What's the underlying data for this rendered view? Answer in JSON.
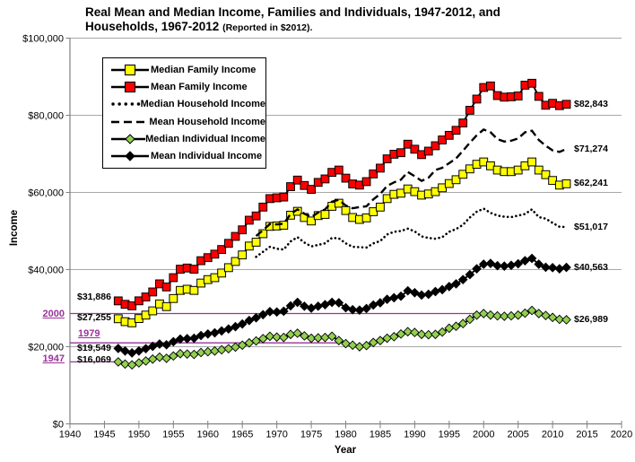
{
  "title": {
    "line1": "Real Mean and Median Income, Families and Individuals, 1947-2012, and",
    "line2": "Households, 1967-2012 ",
    "line2_note": "(Reported in $2012)."
  },
  "axes": {
    "x": {
      "label": "Year",
      "min": 1940,
      "max": 2020,
      "ticks": [
        1940,
        1945,
        1950,
        1955,
        1960,
        1965,
        1970,
        1975,
        1980,
        1985,
        1990,
        1995,
        2000,
        2005,
        2010,
        2015,
        2020
      ],
      "tick_labels": [
        "1940",
        "1945",
        "1950",
        "1955",
        "1960",
        "1965",
        "1970",
        "1975",
        "1980",
        "1985",
        "1990",
        "1995",
        "2000",
        "2005",
        "2010",
        "2015",
        "2020"
      ]
    },
    "y": {
      "label": "Income",
      "min": 0,
      "max": 100000,
      "ticks": [
        0,
        20000,
        40000,
        60000,
        80000,
        100000
      ],
      "tick_labels": [
        "$0",
        "$20,000",
        "$40,000",
        "$60,000",
        "$80,000",
        "$100,000"
      ]
    }
  },
  "legend": {
    "entries": [
      {
        "label": "Median Family Income",
        "series": "median_family"
      },
      {
        "label": "Mean Family Income",
        "series": "mean_family"
      },
      {
        "label": "Median Household Income",
        "series": "median_household"
      },
      {
        "label": "Mean Household Income",
        "series": "mean_household"
      },
      {
        "label": "Median Individual Income",
        "series": "median_individual"
      },
      {
        "label": "Mean Individual Income",
        "series": "mean_individual"
      }
    ]
  },
  "annotations": {
    "start_labels": [
      {
        "text": "$31,886",
        "series": "mean_family"
      },
      {
        "text": "$27,255",
        "series": "median_family"
      },
      {
        "text": "$19,549",
        "series": "mean_individual"
      },
      {
        "text": "$16,069",
        "series": "median_individual"
      }
    ],
    "end_labels": [
      {
        "text": "$82,843",
        "series": "mean_family"
      },
      {
        "text": "$71,274",
        "series": "mean_household"
      },
      {
        "text": "$62,241",
        "series": "median_family"
      },
      {
        "text": "$51,017",
        "series": "median_household"
      },
      {
        "text": "$40,563",
        "series": "mean_individual"
      },
      {
        "text": "$26,989",
        "series": "median_individual"
      }
    ],
    "reference_lines": [
      {
        "label": "2000",
        "value": 28600,
        "end_year": 2000,
        "label_position": "outside-axis"
      },
      {
        "label": "1979",
        "value": 21000,
        "end_year": 1979,
        "label_position": "inside-plot"
      },
      {
        "label": "1947",
        "value": 16069,
        "end_year": 1947,
        "label_position": "outside-axis"
      }
    ]
  },
  "colors": {
    "gridline": "#A8A8A8",
    "axis": "#808080",
    "reference": "#993399",
    "text": "#000000"
  },
  "chart_data": {
    "type": "line",
    "title": "Real Mean and Median Income, Families and Individuals, 1947-2012, and Households, 1967-2012 (Reported in $2012).",
    "xlabel": "Year",
    "ylabel": "Income",
    "xlim": [
      1940,
      2020
    ],
    "ylim": [
      0,
      100000
    ],
    "grid": "horizontal",
    "legend_position": "upper-left-inside",
    "series": [
      {
        "id": "median_family",
        "name": "Median Family Income",
        "start_year": 1947,
        "line": "solid",
        "line_color": "#000000",
        "marker": "square",
        "marker_color": "#FFFF00",
        "values": [
          27255,
          26500,
          26200,
          27300,
          28200,
          29300,
          31100,
          30400,
          32500,
          34600,
          34900,
          34600,
          36500,
          37400,
          37900,
          39100,
          40500,
          42100,
          43800,
          46100,
          47100,
          49300,
          51200,
          51300,
          51500,
          54100,
          55100,
          53500,
          52600,
          54000,
          54300,
          56400,
          57200,
          55300,
          53500,
          53000,
          53400,
          55000,
          56200,
          58400,
          59500,
          59800,
          60900,
          60200,
          59300,
          59600,
          60200,
          61200,
          62300,
          63300,
          64700,
          66100,
          67300,
          67900,
          66900,
          65800,
          65400,
          65400,
          65800,
          66900,
          67900,
          65800,
          64600,
          63100,
          61900,
          62241
        ]
      },
      {
        "id": "mean_family",
        "name": "Mean Family Income",
        "start_year": 1947,
        "line": "solid",
        "line_color": "#000000",
        "marker": "square",
        "marker_color": "#FF0000",
        "values": [
          31886,
          31000,
          30600,
          31900,
          32900,
          34200,
          36300,
          35500,
          37900,
          40100,
          40400,
          40100,
          42300,
          43100,
          44000,
          45200,
          46800,
          48600,
          50300,
          52800,
          53900,
          56200,
          58400,
          58600,
          58800,
          61500,
          63200,
          61800,
          60800,
          62600,
          63500,
          65200,
          65800,
          63700,
          62200,
          61900,
          62800,
          64800,
          66300,
          68700,
          69900,
          70300,
          72500,
          71200,
          69800,
          70700,
          72100,
          73600,
          74800,
          76100,
          78000,
          81300,
          84200,
          87200,
          87600,
          85100,
          84700,
          84800,
          85000,
          87800,
          88300,
          84900,
          82600,
          83100,
          82500,
          82843
        ]
      },
      {
        "id": "median_household",
        "name": "Median Household Income",
        "start_year": 1967,
        "line": "dotted",
        "line_color": "#000000",
        "marker": "none",
        "marker_color": "",
        "values": [
          43300,
          44600,
          45900,
          45400,
          45200,
          47300,
          48400,
          47000,
          46000,
          46400,
          46800,
          48200,
          48100,
          46800,
          45900,
          45800,
          45700,
          46800,
          47400,
          49100,
          49800,
          50000,
          50600,
          49900,
          48600,
          48200,
          48000,
          48400,
          49800,
          50500,
          51600,
          53500,
          55000,
          55800,
          54700,
          54000,
          53700,
          53600,
          54000,
          54400,
          55600,
          53600,
          53200,
          52100,
          51100,
          51017
        ]
      },
      {
        "id": "mean_household",
        "name": "Mean Household Income",
        "start_year": 1967,
        "line": "dashed",
        "line_color": "#000000",
        "marker": "none",
        "marker_color": "",
        "values": [
          48700,
          50200,
          51800,
          51700,
          51900,
          54400,
          55600,
          54500,
          53600,
          54800,
          55600,
          57600,
          58100,
          56600,
          55900,
          56200,
          56400,
          58200,
          59600,
          61700,
          62600,
          63300,
          65300,
          64200,
          63000,
          63800,
          65800,
          66400,
          67600,
          68800,
          70800,
          72900,
          74800,
          76300,
          75600,
          73800,
          73200,
          73400,
          74000,
          75600,
          76000,
          73600,
          72100,
          70900,
          70500,
          71274
        ]
      },
      {
        "id": "median_individual",
        "name": "Median Individual Income",
        "start_year": 1947,
        "line": "solid",
        "line_color": "#000000",
        "marker": "diamond",
        "marker_color": "#92D050",
        "values": [
          16069,
          15500,
          15300,
          15800,
          16300,
          16800,
          17300,
          17000,
          17600,
          18200,
          18100,
          18000,
          18500,
          18700,
          18900,
          19200,
          19500,
          19900,
          20400,
          21000,
          21500,
          22100,
          22700,
          22500,
          22400,
          23200,
          23500,
          22800,
          22200,
          22300,
          22400,
          22700,
          21600,
          20800,
          20400,
          20000,
          20300,
          21100,
          21600,
          22200,
          22600,
          23300,
          23900,
          23700,
          23200,
          23100,
          23200,
          23800,
          24800,
          25300,
          26000,
          27100,
          28200,
          28600,
          28200,
          28000,
          27900,
          28000,
          28200,
          28700,
          29400,
          28600,
          28100,
          27600,
          27100,
          26989
        ]
      },
      {
        "id": "mean_individual",
        "name": "Mean Individual Income",
        "start_year": 1947,
        "line": "solid",
        "line_color": "#000000",
        "marker": "diamond",
        "marker_color": "#000000",
        "values": [
          19549,
          18900,
          18400,
          18900,
          19500,
          20100,
          20700,
          20500,
          21300,
          22000,
          22100,
          22200,
          22900,
          23300,
          23600,
          24100,
          24600,
          25200,
          25900,
          26800,
          27500,
          28300,
          29100,
          29000,
          29200,
          30600,
          31500,
          30500,
          30000,
          30500,
          30900,
          31500,
          31400,
          30100,
          29600,
          29500,
          29900,
          30800,
          31400,
          32300,
          32700,
          33100,
          34500,
          34000,
          33400,
          33600,
          34300,
          34800,
          35600,
          36300,
          37400,
          38700,
          40200,
          41400,
          41600,
          41000,
          40900,
          41100,
          41500,
          42300,
          42900,
          41400,
          40600,
          40500,
          40200,
          40563
        ]
      }
    ]
  }
}
